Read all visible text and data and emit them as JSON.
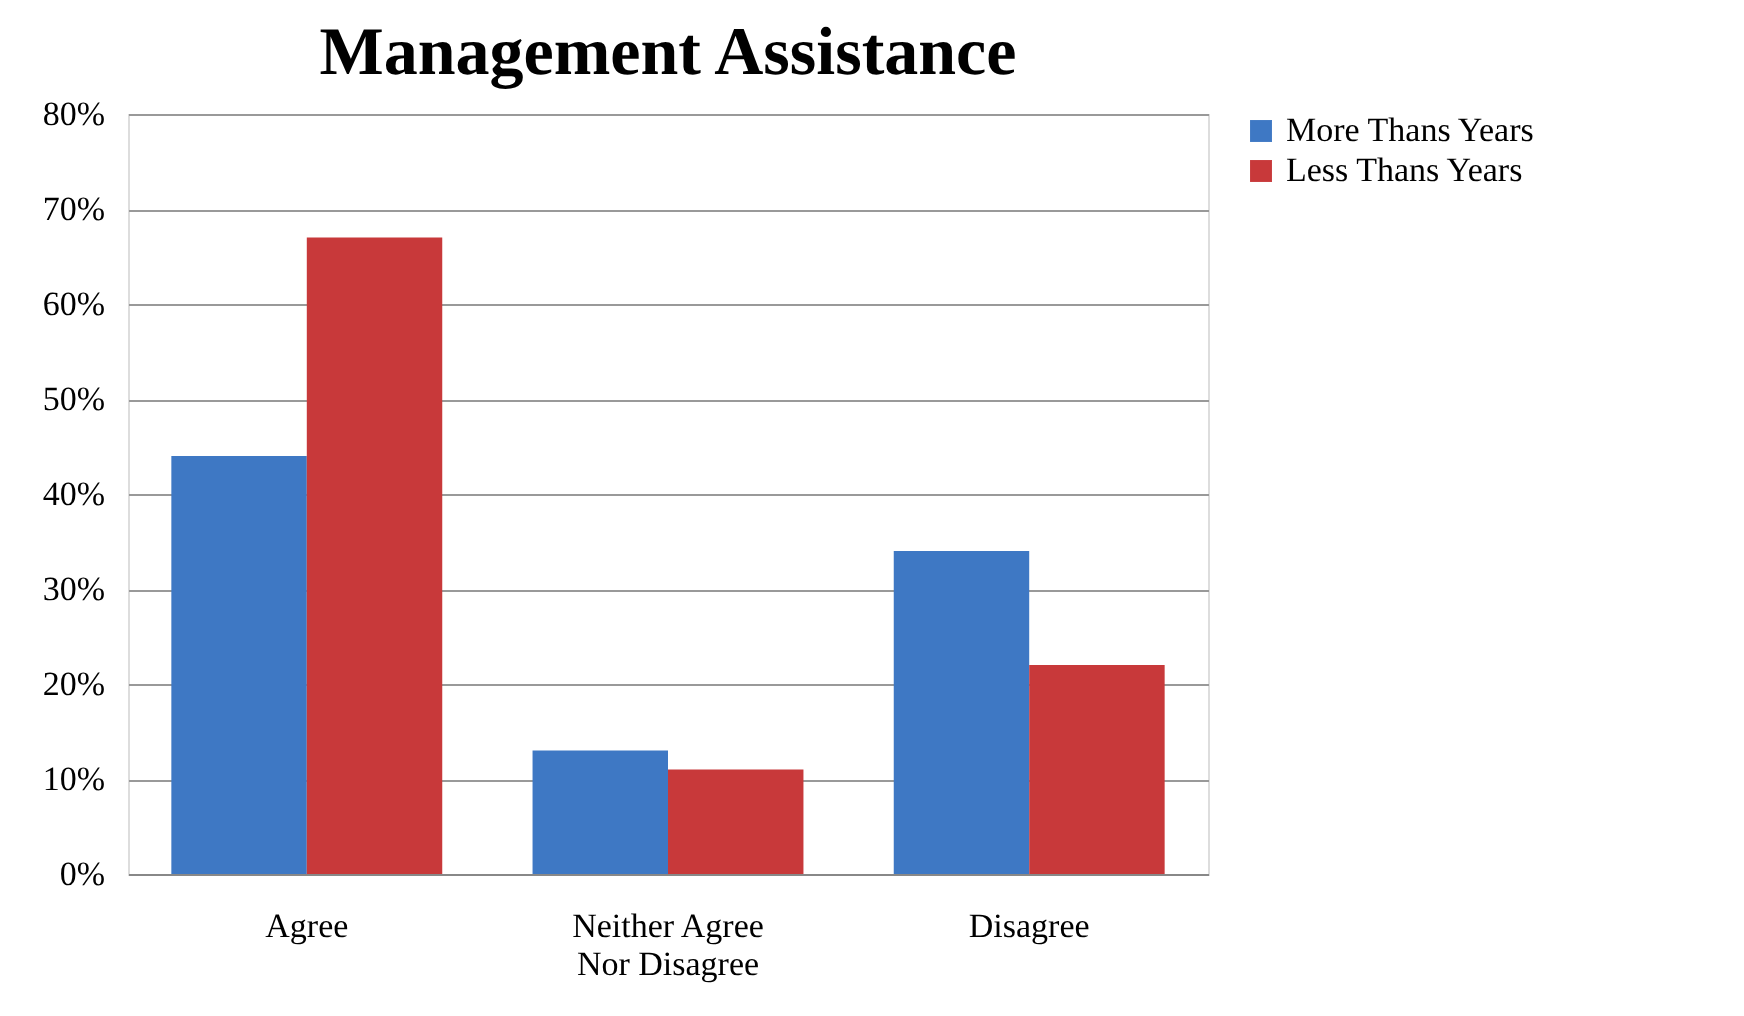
{
  "chart_data": {
    "type": "bar",
    "title": "Management Assistance",
    "categories": [
      "Agree",
      "Neither Agree Nor Disagree",
      "Disagree"
    ],
    "series": [
      {
        "name": "More Thans Years",
        "color": "#3e78c4",
        "values": [
          44,
          13,
          34
        ]
      },
      {
        "name": "Less  Thans Years",
        "color": "#c8393a",
        "values": [
          67,
          11,
          22
        ]
      }
    ],
    "ylim": [
      0,
      80
    ],
    "yticks": [
      {
        "value": 0,
        "label": "0%"
      },
      {
        "value": 10,
        "label": "10%"
      },
      {
        "value": 20,
        "label": "20%"
      },
      {
        "value": 30,
        "label": "30%"
      },
      {
        "value": 40,
        "label": "40%"
      },
      {
        "value": 50,
        "label": "50%"
      },
      {
        "value": 60,
        "label": "60%"
      },
      {
        "value": 70,
        "label": "70%"
      },
      {
        "value": 80,
        "label": "80%"
      }
    ],
    "grid": "y",
    "legend": "right"
  }
}
